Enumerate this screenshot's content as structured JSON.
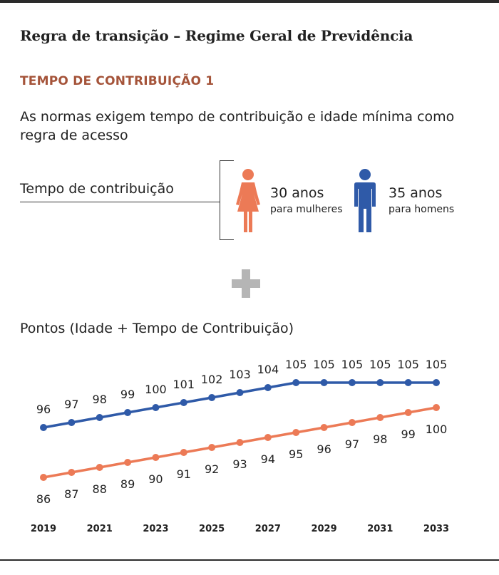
{
  "header": {
    "title": "Regra de transição – Regime Geral de Previdência",
    "section": "TEMPO DE CONTRIBUIÇÃO 1",
    "description": "As normas exigem tempo de contribuição e idade mínima como regra de acesso"
  },
  "requirement": {
    "label": "Tempo de contribuição",
    "women": {
      "years": "30 anos",
      "caption": "para mulheres",
      "icon": "woman-icon",
      "color": "#ec7a56"
    },
    "men": {
      "years": "35 anos",
      "caption": "para homens",
      "icon": "man-icon",
      "color": "#2f5aa8"
    }
  },
  "plus_icon": "plus-icon",
  "points_title": "Pontos (Idade + Tempo de Contribuição)",
  "chart_data": {
    "type": "line",
    "title": "Pontos (Idade + Tempo de Contribuição)",
    "x": [
      2019,
      2020,
      2021,
      2022,
      2023,
      2024,
      2025,
      2026,
      2027,
      2028,
      2029,
      2030,
      2031,
      2032,
      2033
    ],
    "x_tick_labels": [
      "2019",
      "2021",
      "2023",
      "2025",
      "2027",
      "2029",
      "2031",
      "2033"
    ],
    "series": [
      {
        "color": "#2f5aa8",
        "values": [
          96,
          97,
          98,
          99,
          100,
          101,
          102,
          103,
          104,
          105,
          105,
          105,
          105,
          105,
          105
        ]
      },
      {
        "color": "#ec7a56",
        "values": [
          86,
          87,
          88,
          89,
          90,
          91,
          92,
          93,
          94,
          95,
          96,
          97,
          98,
          99,
          100
        ]
      }
    ],
    "ylim": [
      84,
      107
    ],
    "grid": false,
    "legend": "none"
  }
}
